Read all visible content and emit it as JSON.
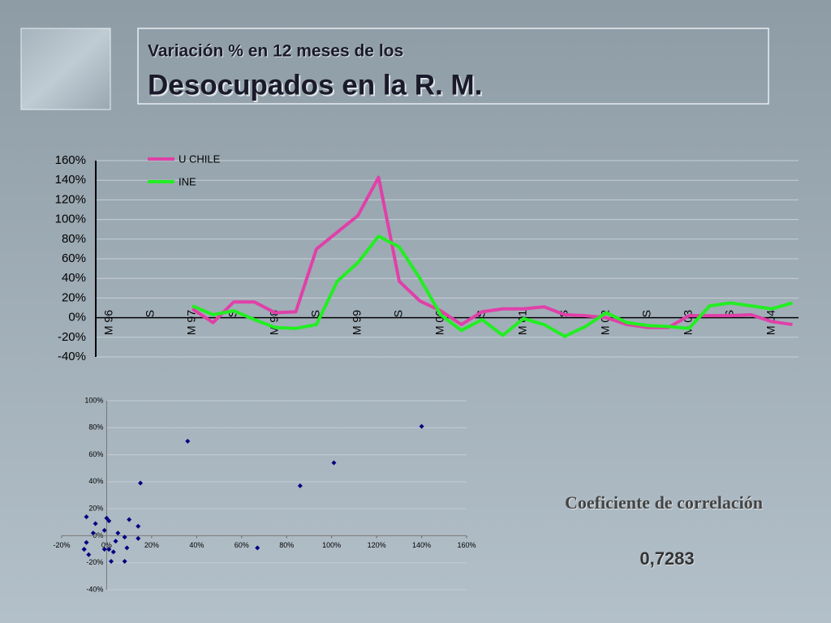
{
  "slide": {
    "title_line1": "Variación % en 12 meses de los",
    "title_line2": "Desocupados en la R. M."
  },
  "correlation": {
    "label": "Coeficiente de correlación",
    "value": "0,7283"
  },
  "chart_data": [
    {
      "type": "line",
      "categories": [
        "M 96",
        null,
        "S",
        null,
        "M 97",
        null,
        "S",
        null,
        "M 98",
        null,
        "S",
        null,
        "M 99",
        null,
        "S",
        null,
        "M 00",
        null,
        "S",
        null,
        "M 01",
        null,
        "S",
        null,
        "M 02",
        null,
        "S",
        null,
        "M 03",
        null,
        "S",
        null,
        "M 04",
        null
      ],
      "series": [
        {
          "name": "U CHILE",
          "color": "#e040a8",
          "values": [
            null,
            null,
            null,
            null,
            9,
            -5,
            16,
            16,
            5,
            6,
            70,
            87,
            104,
            143,
            37,
            17,
            7,
            -7,
            6,
            9,
            9,
            11,
            3,
            2,
            0,
            -7,
            -10,
            -10,
            2,
            2,
            2,
            3,
            -4,
            -7
          ]
        },
        {
          "name": "INE",
          "color": "#22ee22",
          "values": [
            null,
            null,
            null,
            null,
            12,
            3,
            7,
            -2,
            -10,
            -11,
            -7,
            37,
            56,
            83,
            72,
            40,
            3,
            -13,
            -2,
            -18,
            -1,
            -7,
            -19,
            -9,
            5,
            -5,
            -8,
            -9,
            -11,
            12,
            15,
            12,
            9,
            15
          ]
        }
      ],
      "ylim": [
        -40,
        160
      ],
      "yticks": [
        {
          "value": -40,
          "label": "-40%"
        },
        {
          "value": -20,
          "label": "-20%"
        },
        {
          "value": 0,
          "label": "0%"
        },
        {
          "value": 20,
          "label": "20%"
        },
        {
          "value": 40,
          "label": "40%"
        },
        {
          "value": 60,
          "label": "60%"
        },
        {
          "value": 80,
          "label": "80%"
        },
        {
          "value": 100,
          "label": "100%"
        },
        {
          "value": 120,
          "label": "120%"
        },
        {
          "value": 140,
          "label": "140%"
        },
        {
          "value": 160,
          "label": "160%"
        }
      ],
      "grid": true,
      "legend": "top-left"
    },
    {
      "type": "scatter",
      "color": "#000080",
      "x": [
        140,
        36,
        101,
        86,
        15,
        67,
        -9,
        10,
        -5,
        0,
        1,
        14,
        5,
        8,
        -1,
        -6,
        4,
        -9,
        -10,
        -8,
        -1,
        1,
        3,
        9,
        14,
        2,
        8,
        1,
        -10
      ],
      "values": [
        81,
        70,
        54,
        37,
        39,
        -9,
        14,
        12,
        9,
        13,
        11,
        7,
        2,
        -1,
        4,
        2,
        -4,
        -5,
        -10,
        -14,
        -10,
        -10,
        -12,
        -9,
        -2,
        -19,
        -19,
        -10,
        -10
      ],
      "xlim": [
        -20,
        160
      ],
      "xticks": [
        {
          "value": -20,
          "label": "-20%"
        },
        {
          "value": 0,
          "label": "0%"
        },
        {
          "value": 20,
          "label": "20%"
        },
        {
          "value": 40,
          "label": "40%"
        },
        {
          "value": 60,
          "label": "60%"
        },
        {
          "value": 80,
          "label": "80%"
        },
        {
          "value": 100,
          "label": "100%"
        },
        {
          "value": 120,
          "label": "120%"
        },
        {
          "value": 140,
          "label": "140%"
        },
        {
          "value": 160,
          "label": "160%"
        }
      ],
      "ylim": [
        -40,
        100
      ],
      "yticks": [
        {
          "value": -40,
          "label": "-40%"
        },
        {
          "value": -20,
          "label": "-20%"
        },
        {
          "value": 0,
          "label": "0%"
        },
        {
          "value": 20,
          "label": "20%"
        },
        {
          "value": 40,
          "label": "40%"
        },
        {
          "value": 60,
          "label": "60%"
        },
        {
          "value": 80,
          "label": "80%"
        },
        {
          "value": 100,
          "label": "100%"
        }
      ],
      "grid": true
    }
  ]
}
